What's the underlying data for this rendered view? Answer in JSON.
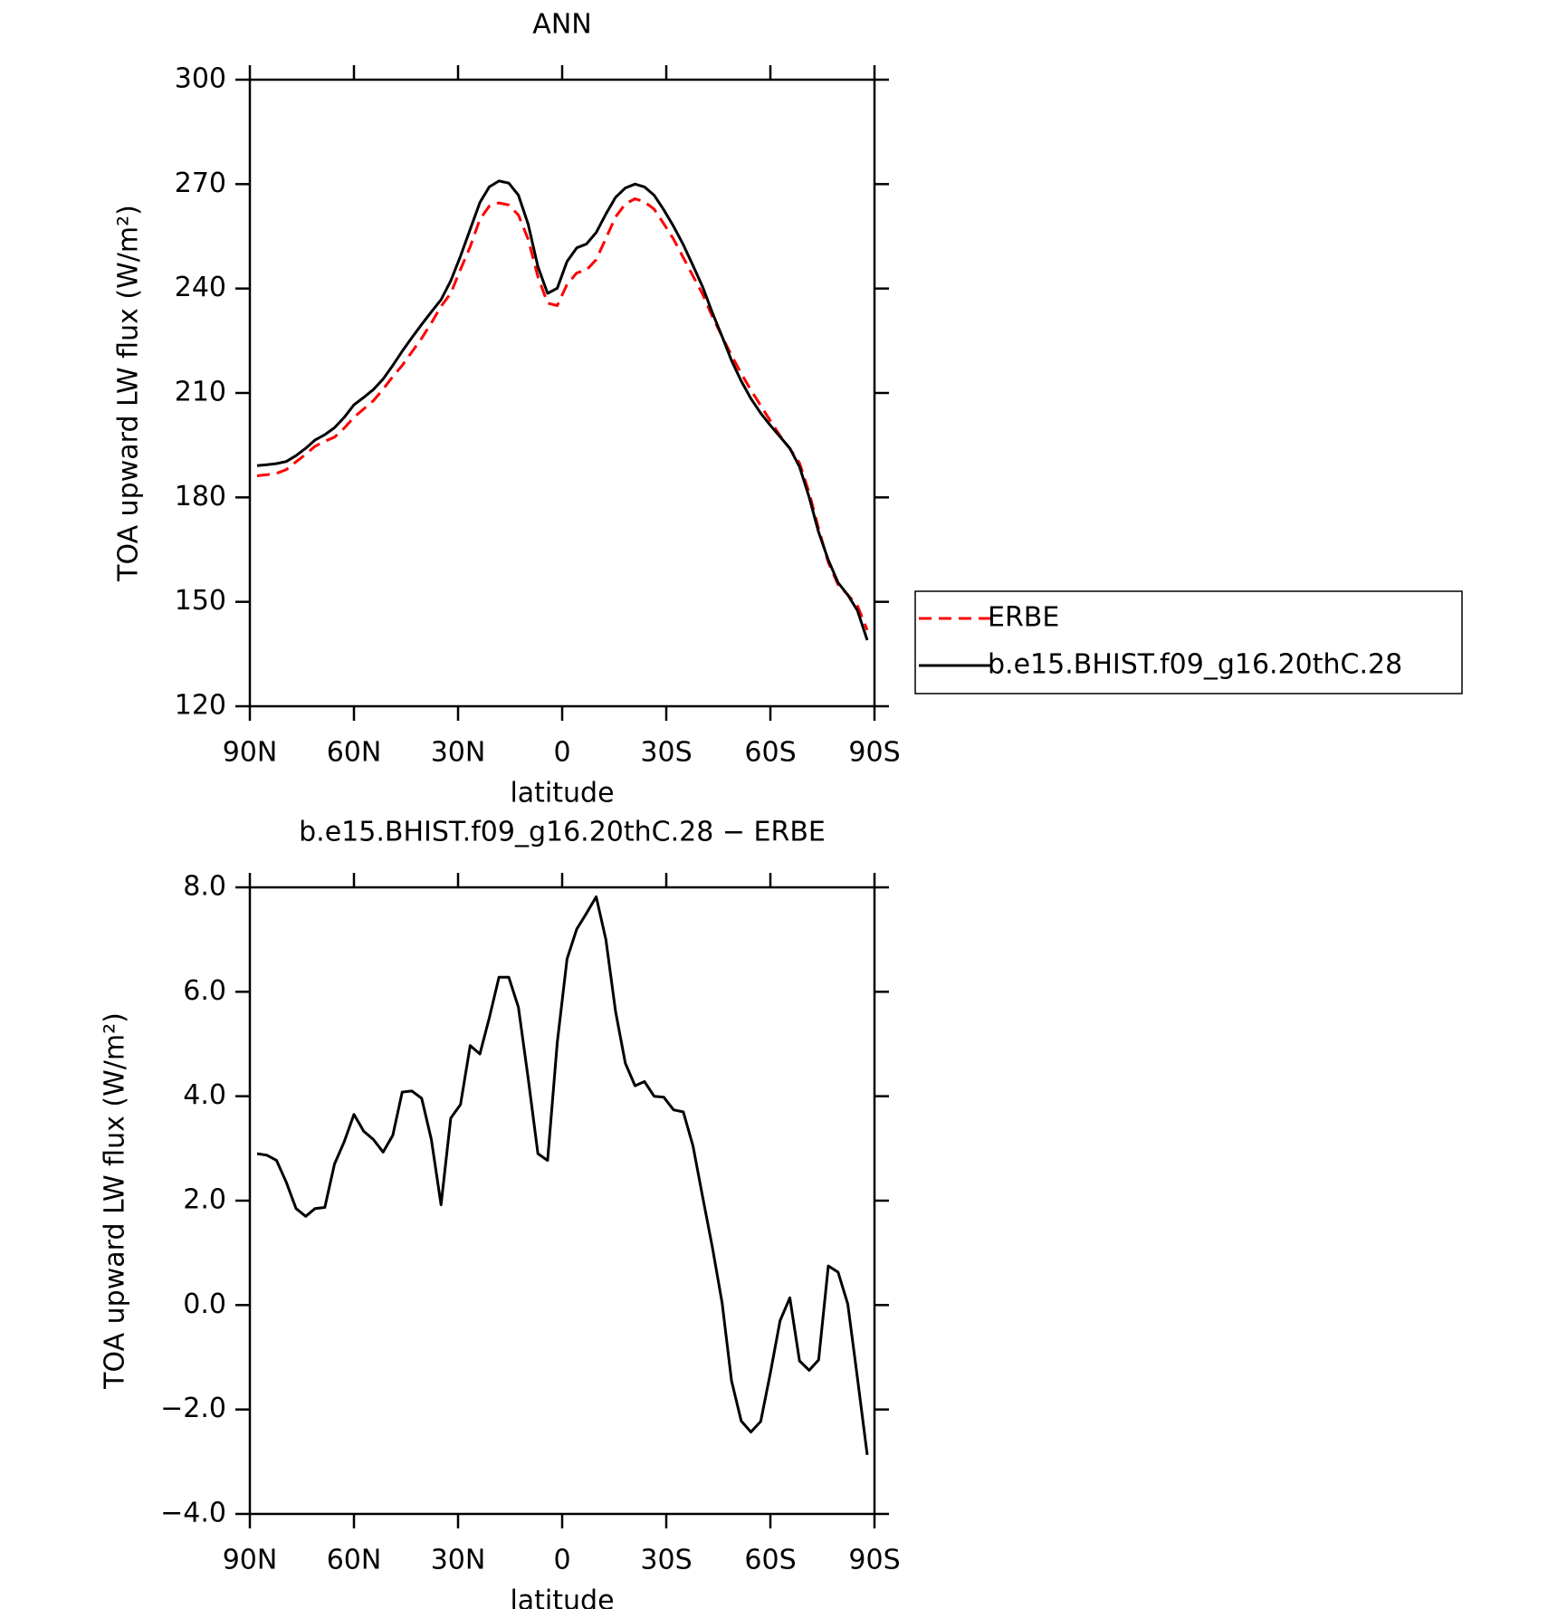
{
  "chart_data": [
    {
      "type": "line",
      "title": "ANN",
      "xlabel": "latitude",
      "ylabel": "TOA upward LW flux (W/m²)",
      "x": [
        87.9,
        85.1,
        82.3,
        79.5,
        76.7,
        73.9,
        71.2,
        68.4,
        65.6,
        62.8,
        60.0,
        57.2,
        54.4,
        51.6,
        48.8,
        46.1,
        43.3,
        40.5,
        37.7,
        34.9,
        32.1,
        29.3,
        26.5,
        23.7,
        21.0,
        18.2,
        15.4,
        12.6,
        9.8,
        7.0,
        4.2,
        1.4,
        -1.4,
        -4.2,
        -7.0,
        -9.8,
        -12.6,
        -15.4,
        -18.2,
        -21.0,
        -23.7,
        -26.5,
        -29.3,
        -32.1,
        -34.9,
        -37.7,
        -40.5,
        -43.3,
        -46.1,
        -48.8,
        -51.6,
        -54.4,
        -57.2,
        -60.0,
        -62.8,
        -65.6,
        -68.4,
        -71.2,
        -73.9,
        -76.7,
        -79.5,
        -82.3,
        -85.1,
        -87.9
      ],
      "xlim": [
        90,
        -90
      ],
      "xticks": [
        {
          "value": 90,
          "label": "90N"
        },
        {
          "value": 60,
          "label": "60N"
        },
        {
          "value": 30,
          "label": "30N"
        },
        0,
        {
          "value": -30,
          "label": "30S"
        },
        {
          "value": -60,
          "label": "60S"
        },
        {
          "value": -90,
          "label": "90S"
        }
      ],
      "ylim": [
        120,
        300
      ],
      "yticks": [
        120,
        150,
        180,
        210,
        240,
        270,
        300
      ],
      "legend": "right",
      "series": [
        {
          "name": "ERBE",
          "color": "#ff0000",
          "linestyle": "dashed",
          "values": [
            186.2,
            186.5,
            186.9,
            188.0,
            190.2,
            192.4,
            194.7,
            196.1,
            197.3,
            199.9,
            203.0,
            205.4,
            207.8,
            211.1,
            214.7,
            217.9,
            221.8,
            225.7,
            230.1,
            234.9,
            238.6,
            245.5,
            252.0,
            259.9,
            263.7,
            264.6,
            264.0,
            261.1,
            254.2,
            243.4,
            235.8,
            235.1,
            241.2,
            244.5,
            245.3,
            248.3,
            254.4,
            260.6,
            264.3,
            265.8,
            264.9,
            262.8,
            258.6,
            254.2,
            248.9,
            243.6,
            238.3,
            231.9,
            226.2,
            220.8,
            215.6,
            210.8,
            206.4,
            202.0,
            197.7,
            194.0,
            189.9,
            181.3,
            171.0,
            161.3,
            154.9,
            152.0,
            148.9,
            141.9
          ]
        },
        {
          "name": "b.e15.BHIST.f09_g16.20thC.28",
          "color": "#000000",
          "linestyle": "solid",
          "values": [
            189.1,
            189.4,
            189.7,
            190.3,
            192.0,
            194.1,
            196.5,
            198.0,
            200.0,
            203.0,
            206.6,
            208.7,
            211.0,
            214.0,
            217.9,
            222.0,
            225.9,
            229.7,
            233.3,
            236.8,
            242.2,
            249.3,
            257.0,
            264.7,
            269.2,
            270.9,
            270.3,
            266.8,
            258.5,
            246.3,
            238.6,
            240.1,
            247.8,
            251.7,
            252.8,
            256.1,
            261.4,
            266.2,
            268.9,
            270.0,
            269.2,
            266.8,
            262.6,
            257.9,
            252.6,
            246.6,
            240.4,
            233.0,
            226.2,
            219.3,
            213.4,
            208.4,
            204.2,
            200.7,
            197.4,
            194.1,
            188.8,
            180.0,
            170.0,
            162.0,
            155.5,
            152.0,
            147.5,
            139.0
          ]
        }
      ]
    },
    {
      "type": "line",
      "title": "b.e15.BHIST.f09_g16.20thC.28 − ERBE",
      "xlabel": "latitude",
      "ylabel": "TOA upward LW flux (W/m²)",
      "x": [
        87.9,
        85.1,
        82.3,
        79.5,
        76.7,
        73.9,
        71.2,
        68.4,
        65.6,
        62.8,
        60.0,
        57.2,
        54.4,
        51.6,
        48.8,
        46.1,
        43.3,
        40.5,
        37.7,
        34.9,
        32.1,
        29.3,
        26.5,
        23.7,
        21.0,
        18.2,
        15.4,
        12.6,
        9.8,
        7.0,
        4.2,
        1.4,
        -1.4,
        -4.2,
        -7.0,
        -9.8,
        -12.6,
        -15.4,
        -18.2,
        -21.0,
        -23.7,
        -26.5,
        -29.3,
        -32.1,
        -34.9,
        -37.7,
        -40.5,
        -43.3,
        -46.1,
        -48.8,
        -51.6,
        -54.4,
        -57.2,
        -60.0,
        -62.8,
        -65.6,
        -68.4,
        -71.2,
        -73.9,
        -76.7,
        -79.5,
        -82.3,
        -85.1,
        -87.9
      ],
      "xlim": [
        90,
        -90
      ],
      "xticks": [
        {
          "value": 90,
          "label": "90N"
        },
        {
          "value": 60,
          "label": "60N"
        },
        {
          "value": 30,
          "label": "30N"
        },
        0,
        {
          "value": -30,
          "label": "30S"
        },
        {
          "value": -60,
          "label": "60S"
        },
        {
          "value": -90,
          "label": "90S"
        }
      ],
      "ylim": [
        -4,
        8
      ],
      "yticks": [
        {
          "value": -4,
          "label": "−4.0"
        },
        {
          "value": -2,
          "label": "−2.0"
        },
        {
          "value": 0,
          "label": "0.0"
        },
        {
          "value": 2,
          "label": "2.0"
        },
        {
          "value": 4,
          "label": "4.0"
        },
        {
          "value": 6,
          "label": "6.0"
        },
        {
          "value": 8,
          "label": "8.0"
        }
      ],
      "series": [
        {
          "color": "#000000",
          "linestyle": "solid",
          "values": [
            2.9,
            2.87,
            2.77,
            2.35,
            1.85,
            1.7,
            1.85,
            1.87,
            2.7,
            3.13,
            3.65,
            3.33,
            3.17,
            2.93,
            3.25,
            4.08,
            4.1,
            3.96,
            3.17,
            1.92,
            3.58,
            3.84,
            4.97,
            4.81,
            5.5,
            6.28,
            6.28,
            5.7,
            4.35,
            2.9,
            2.77,
            5.03,
            6.63,
            7.2,
            7.5,
            7.82,
            7.0,
            5.62,
            4.63,
            4.2,
            4.28,
            4.0,
            3.98,
            3.74,
            3.7,
            3.05,
            2.06,
            1.1,
            0.04,
            -1.45,
            -2.22,
            -2.43,
            -2.23,
            -1.3,
            -0.3,
            0.14,
            -1.07,
            -1.25,
            -1.05,
            0.75,
            0.63,
            0.02,
            -1.4,
            -2.87
          ]
        }
      ]
    }
  ]
}
